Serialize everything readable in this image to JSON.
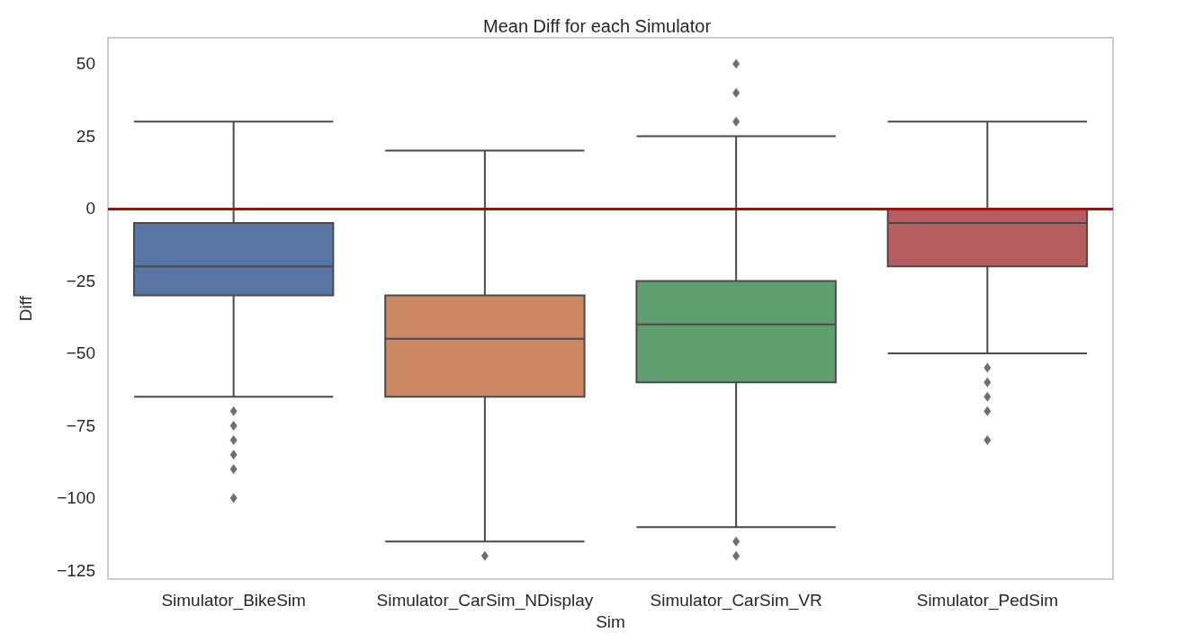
{
  "chart_data": {
    "type": "box",
    "title": "Mean Diff for each Simulator",
    "xlabel": "Sim",
    "ylabel": "Diff",
    "categories": [
      "Simulator_BikeSim",
      "Simulator_CarSim_NDisplay",
      "Simulator_CarSim_VR",
      "Simulator_PedSim"
    ],
    "colors": [
      "#5875a4",
      "#cc8963",
      "#5f9e6e",
      "#b55d60"
    ],
    "boxes": [
      {
        "low": -65,
        "q1": -30,
        "median": -20,
        "q3": -5,
        "high": 30,
        "outliers": [
          -70,
          -75,
          -80,
          -85,
          -90,
          -100
        ]
      },
      {
        "low": -115,
        "q1": -65,
        "median": -45,
        "q3": -30,
        "high": 20,
        "outliers": [
          -120
        ]
      },
      {
        "low": -110,
        "q1": -60,
        "median": -40,
        "q3": -25,
        "high": 25,
        "outliers": [
          50,
          40,
          30,
          -115,
          -120
        ]
      },
      {
        "low": -50,
        "q1": -20,
        "median": -5,
        "q3": 0,
        "high": 30,
        "outliers": [
          -55,
          -60,
          -65,
          -70,
          -80
        ]
      }
    ],
    "ylim": [
      -128,
      59
    ],
    "yticks": [
      {
        "value": -125,
        "label": "−125"
      },
      {
        "value": -100,
        "label": "−100"
      },
      {
        "value": -75,
        "label": "−75"
      },
      {
        "value": -50,
        "label": "−50"
      },
      {
        "value": -25,
        "label": "−25"
      },
      0,
      25,
      50
    ],
    "ref_lines": [
      {
        "axis": "y",
        "value": 0,
        "color": "#c00000"
      }
    ],
    "grid": false,
    "marker": "diamond"
  }
}
